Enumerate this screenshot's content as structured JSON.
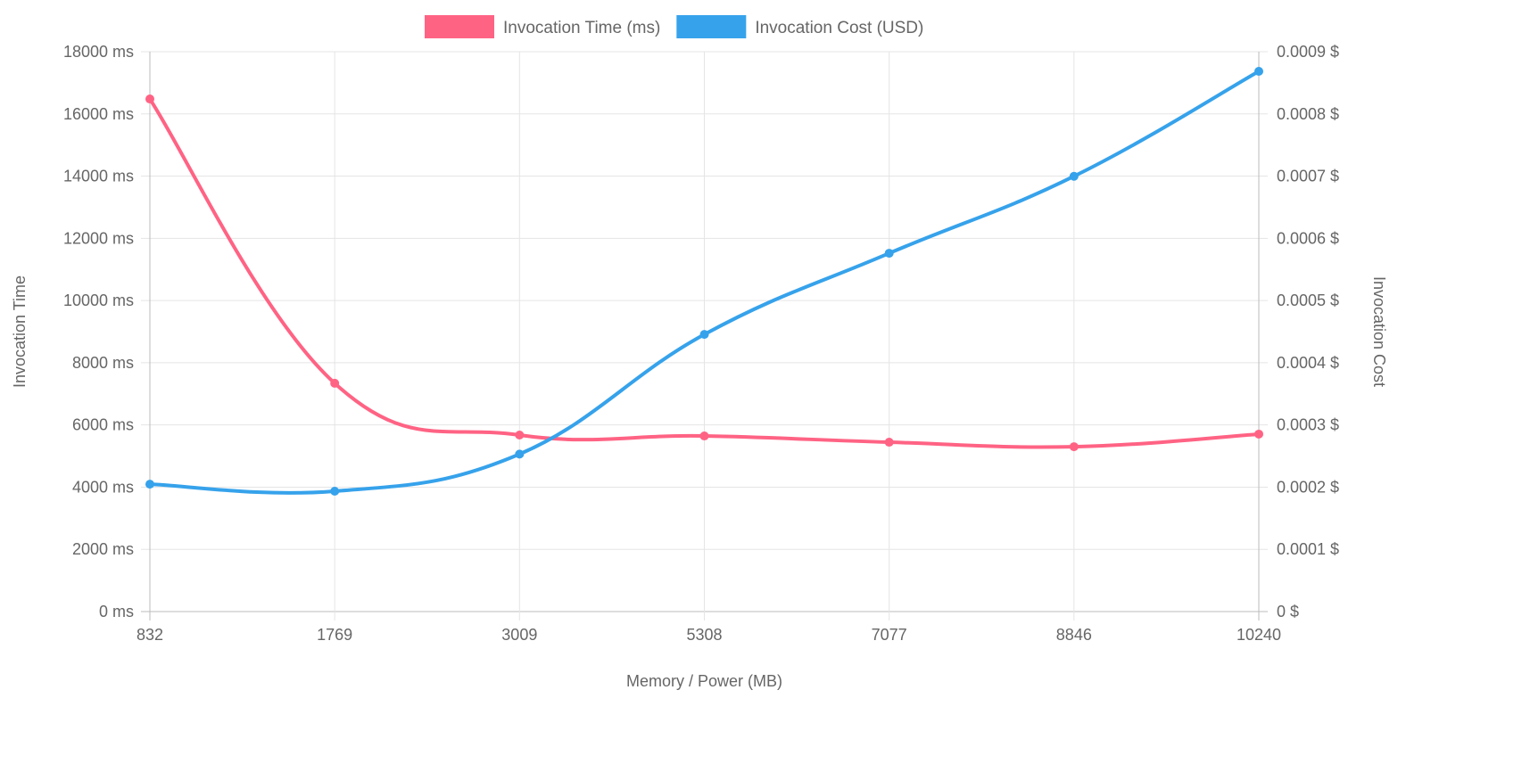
{
  "chart_data": {
    "type": "line",
    "categories": [
      "832",
      "1769",
      "3009",
      "5308",
      "7077",
      "8846",
      "10240"
    ],
    "xlabel": "Memory / Power (MB)",
    "y_left": {
      "label": "Invocation Time",
      "range": [
        0,
        18000
      ],
      "step": 2000,
      "unit": " ms"
    },
    "y_right": {
      "label": "Invocation Cost",
      "range": [
        0,
        0.0008
      ],
      "step": 0.0001,
      "unit": " $"
    },
    "grid": true,
    "legend_position": "top",
    "series": [
      {
        "name": "Invocation Time (ms)",
        "axis": "left",
        "color": "#ff6384",
        "values": [
          16480,
          7340,
          5675,
          5645,
          5445,
          5300,
          5705
        ]
      },
      {
        "name": "Invocation Cost (USD)",
        "axis": "right",
        "color": "#36a2eb",
        "values": [
          0.000182,
          0.000172,
          0.000225,
          0.000396,
          0.000512,
          0.000622,
          0.000772
        ]
      }
    ]
  }
}
